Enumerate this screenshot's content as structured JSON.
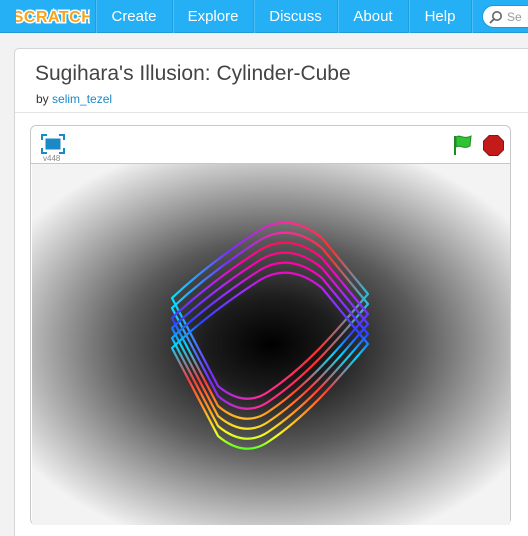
{
  "nav": {
    "logo_text": "SCRATCH",
    "items": [
      {
        "label": "Create"
      },
      {
        "label": "Explore"
      },
      {
        "label": "Discuss"
      },
      {
        "label": "About"
      },
      {
        "label": "Help"
      }
    ],
    "search_placeholder": "Se"
  },
  "project": {
    "title": "Sugihara's Illusion: Cylinder-Cube",
    "by_label": "by",
    "author": "selim_tezel"
  },
  "player": {
    "version": "v448",
    "icons": {
      "fullscreen": "fullscreen-icon",
      "flag": "green-flag-icon",
      "stop": "stop-sign-icon"
    },
    "colors": {
      "flag": "#2fc235",
      "stop": "#c41a1a",
      "fullscreen": "#1a8ac7"
    }
  },
  "colors": {
    "nav_bg": "#25aff4"
  }
}
